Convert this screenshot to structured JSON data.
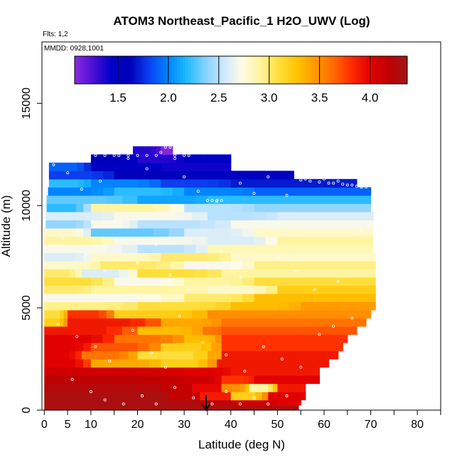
{
  "chart_data": {
    "type": "heatmap",
    "title": "ATOM3 Northeast_Pacific_1 H2O_UWV (Log)",
    "flights_label": "Flts: 1,2",
    "date_label": "MMDD: 0928,1001",
    "xlabel": "Latitude (deg N)",
    "ylabel": "Altitude (m)",
    "xlim": [
      -0.5,
      85
    ],
    "ylim": [
      0,
      18000
    ],
    "x_ticks": [
      0,
      5,
      10,
      20,
      30,
      40,
      50,
      60,
      70,
      80
    ],
    "x_minor_ticks": [
      15,
      25,
      35,
      45,
      55,
      65,
      75,
      85
    ],
    "y_ticks": [
      0,
      5000,
      10000,
      15000
    ],
    "colorbar": {
      "range": [
        1.07,
        4.37
      ],
      "ticks": [
        1.5,
        2.0,
        2.5,
        3.0,
        3.5,
        4.0
      ],
      "tick_labels": [
        "1.5",
        "2.0",
        "2.5",
        "3.0",
        "3.5",
        "4.0"
      ],
      "colors": [
        "#8a2be2",
        "#4b0fd6",
        "#0000c8",
        "#0000b8",
        "#0a3ff0",
        "#0080ff",
        "#1ab8ff",
        "#7fd0ff",
        "#c8e6ff",
        "#fffbe8",
        "#fff5a0",
        "#ffe040",
        "#ffc400",
        "#ff9a00",
        "#ff6a00",
        "#ff2a00",
        "#e00000",
        "#c00000",
        "#a01818"
      ]
    },
    "marker_lat": 34.7,
    "profile_envelope": [
      {
        "alt": 0,
        "lat_min": 0,
        "lat_max": 54.5
      },
      {
        "alt": 500,
        "lat_min": 0,
        "lat_max": 56
      },
      {
        "alt": 1500,
        "lat_min": 0,
        "lat_max": 59
      },
      {
        "alt": 2500,
        "lat_min": 0,
        "lat_max": 61
      },
      {
        "alt": 3500,
        "lat_min": 0,
        "lat_max": 65
      },
      {
        "alt": 4500,
        "lat_min": 0,
        "lat_max": 69
      },
      {
        "alt": 5200,
        "lat_min": 0,
        "lat_max": 71
      },
      {
        "alt": 6000,
        "lat_min": 0,
        "lat_max": 71
      },
      {
        "alt": 7000,
        "lat_min": 0,
        "lat_max": 71
      },
      {
        "alt": 8000,
        "lat_min": 0,
        "lat_max": 70.5
      },
      {
        "alt": 9000,
        "lat_min": 0.3,
        "lat_max": 70.5
      },
      {
        "alt": 10000,
        "lat_min": 0.5,
        "lat_max": 70
      },
      {
        "alt": 11000,
        "lat_min": 0.8,
        "lat_max": 70
      },
      {
        "alt": 11500,
        "lat_min": 1,
        "lat_max": 67
      },
      {
        "alt": 12000,
        "lat_min": 1,
        "lat_max": 53.5
      },
      {
        "alt": 12400,
        "lat_min": 10,
        "lat_max": 40
      },
      {
        "alt": 12800,
        "lat_min": 19,
        "lat_max": 27.5
      },
      {
        "alt": 13000,
        "lat_min": 19,
        "lat_max": 27.5
      }
    ],
    "layers": [
      {
        "alt": [
          0,
          250
        ],
        "segments": [
          [
            0,
            54.5,
            4.3
          ]
        ]
      },
      {
        "alt": [
          250,
          500
        ],
        "segments": [
          [
            0,
            40,
            4.3
          ],
          [
            40,
            50,
            4.1
          ],
          [
            50,
            55,
            4.0
          ]
        ]
      },
      {
        "alt": [
          500,
          900
        ],
        "segments": [
          [
            0,
            40,
            4.3
          ],
          [
            40,
            48,
            3.2
          ],
          [
            48,
            56,
            4.0
          ]
        ]
      },
      {
        "alt": [
          900,
          1300
        ],
        "segments": [
          [
            0,
            38,
            4.25
          ],
          [
            38,
            44,
            3.5
          ],
          [
            44,
            50,
            2.9
          ],
          [
            50,
            56,
            3.9
          ]
        ]
      },
      {
        "alt": [
          1300,
          1700
        ],
        "segments": [
          [
            0,
            30,
            4.2
          ],
          [
            30,
            38,
            4.1
          ],
          [
            38,
            45,
            3.8
          ],
          [
            45,
            59,
            4.0
          ]
        ]
      },
      {
        "alt": [
          1700,
          2100
        ],
        "segments": [
          [
            0,
            30,
            4.1
          ],
          [
            30,
            40,
            4.0
          ],
          [
            40,
            59,
            3.9
          ]
        ]
      },
      {
        "alt": [
          2100,
          2500
        ],
        "segments": [
          [
            0,
            10,
            4.0
          ],
          [
            10,
            25,
            3.4
          ],
          [
            25,
            37,
            3.2
          ],
          [
            37,
            61,
            3.9
          ]
        ]
      },
      {
        "alt": [
          2500,
          2900
        ],
        "segments": [
          [
            0,
            8,
            4.0
          ],
          [
            8,
            20,
            3.6
          ],
          [
            20,
            38,
            3.1
          ],
          [
            38,
            63,
            3.9
          ]
        ]
      },
      {
        "alt": [
          2900,
          3300
        ],
        "segments": [
          [
            0,
            10,
            4.0
          ],
          [
            10,
            25,
            3.7
          ],
          [
            25,
            38,
            3.2
          ],
          [
            38,
            64,
            3.8
          ]
        ]
      },
      {
        "alt": [
          3300,
          3700
        ],
        "segments": [
          [
            0,
            15,
            4.0
          ],
          [
            15,
            30,
            3.6
          ],
          [
            30,
            38,
            3.3
          ],
          [
            38,
            65,
            3.8
          ]
        ]
      },
      {
        "alt": [
          3700,
          4100
        ],
        "segments": [
          [
            0,
            20,
            3.9
          ],
          [
            20,
            34,
            3.3
          ],
          [
            34,
            38,
            3.6
          ],
          [
            38,
            67,
            3.7
          ]
        ]
      },
      {
        "alt": [
          4100,
          4500
        ],
        "segments": [
          [
            0,
            5,
            3.2
          ],
          [
            5,
            25,
            3.9
          ],
          [
            25,
            38,
            3.4
          ],
          [
            38,
            69,
            3.6
          ]
        ]
      },
      {
        "alt": [
          4500,
          4900
        ],
        "segments": [
          [
            0,
            5,
            3.1
          ],
          [
            5,
            15,
            3.8
          ],
          [
            15,
            35,
            3.2
          ],
          [
            35,
            70,
            3.5
          ]
        ]
      },
      {
        "alt": [
          4900,
          5300
        ],
        "segments": [
          [
            0,
            20,
            2.95
          ],
          [
            20,
            40,
            3.1
          ],
          [
            40,
            55,
            3.3
          ],
          [
            55,
            71,
            3.45
          ]
        ]
      },
      {
        "alt": [
          5300,
          5700
        ],
        "segments": [
          [
            0,
            30,
            2.7
          ],
          [
            30,
            45,
            3.0
          ],
          [
            45,
            71,
            3.3
          ]
        ]
      },
      {
        "alt": [
          5700,
          6100
        ],
        "segments": [
          [
            0,
            10,
            3.0
          ],
          [
            10,
            35,
            2.9
          ],
          [
            35,
            50,
            2.8
          ],
          [
            50,
            71,
            3.2
          ]
        ]
      },
      {
        "alt": [
          6100,
          6500
        ],
        "segments": [
          [
            0,
            15,
            3.1
          ],
          [
            15,
            30,
            2.7
          ],
          [
            30,
            45,
            2.9
          ],
          [
            45,
            71,
            3.1
          ]
        ]
      },
      {
        "alt": [
          6500,
          6900
        ],
        "segments": [
          [
            0,
            8,
            3.0
          ],
          [
            8,
            20,
            2.6
          ],
          [
            20,
            38,
            3.1
          ],
          [
            38,
            71,
            2.9
          ]
        ]
      },
      {
        "alt": [
          6900,
          7300
        ],
        "segments": [
          [
            0,
            12,
            2.8
          ],
          [
            12,
            30,
            3.0
          ],
          [
            30,
            45,
            2.7
          ],
          [
            45,
            71,
            2.95
          ]
        ]
      },
      {
        "alt": [
          7300,
          7700
        ],
        "segments": [
          [
            0,
            10,
            2.6
          ],
          [
            10,
            25,
            2.8
          ],
          [
            25,
            40,
            3.0
          ],
          [
            40,
            71,
            2.8
          ]
        ]
      },
      {
        "alt": [
          7700,
          8100
        ],
        "segments": [
          [
            0,
            20,
            2.7
          ],
          [
            20,
            35,
            2.5
          ],
          [
            35,
            70.5,
            2.85
          ]
        ]
      },
      {
        "alt": [
          8100,
          8500
        ],
        "segments": [
          [
            0,
            15,
            2.9
          ],
          [
            15,
            35,
            2.7
          ],
          [
            35,
            50,
            2.6
          ],
          [
            50,
            70.5,
            2.9
          ]
        ]
      },
      {
        "alt": [
          8500,
          8900
        ],
        "segments": [
          [
            0,
            10,
            2.8
          ],
          [
            10,
            30,
            2.3
          ],
          [
            30,
            45,
            2.6
          ],
          [
            45,
            70.5,
            2.8
          ]
        ]
      },
      {
        "alt": [
          8900,
          9300
        ],
        "segments": [
          [
            0.3,
            10,
            2.4
          ],
          [
            10,
            20,
            2.7
          ],
          [
            20,
            40,
            2.5
          ],
          [
            40,
            70.5,
            2.7
          ]
        ]
      },
      {
        "alt": [
          9300,
          9700
        ],
        "segments": [
          [
            0.3,
            15,
            2.6
          ],
          [
            15,
            35,
            2.7
          ],
          [
            35,
            50,
            2.5
          ],
          [
            50,
            70.5,
            2.6
          ]
        ]
      },
      {
        "alt": [
          9700,
          10100
        ],
        "segments": [
          [
            0.5,
            10,
            2.2
          ],
          [
            10,
            30,
            2.9
          ],
          [
            30,
            45,
            2.5
          ],
          [
            45,
            70,
            2.4
          ]
        ]
      },
      {
        "alt": [
          10100,
          10500
        ],
        "segments": [
          [
            0.5,
            20,
            2.3
          ],
          [
            20,
            35,
            2.1
          ],
          [
            35,
            70,
            2.2
          ]
        ]
      },
      {
        "alt": [
          10500,
          10900
        ],
        "segments": [
          [
            0.8,
            15,
            2.0
          ],
          [
            15,
            30,
            2.2
          ],
          [
            30,
            45,
            2.0
          ],
          [
            45,
            70,
            1.9
          ]
        ]
      },
      {
        "alt": [
          10900,
          11300
        ],
        "segments": [
          [
            1,
            10,
            2.2
          ],
          [
            10,
            25,
            2.0
          ],
          [
            25,
            40,
            1.8
          ],
          [
            40,
            67,
            1.7
          ]
        ]
      },
      {
        "alt": [
          11300,
          11700
        ],
        "segments": [
          [
            1,
            15,
            1.8
          ],
          [
            15,
            30,
            1.6
          ],
          [
            30,
            53.5,
            1.5
          ]
        ]
      },
      {
        "alt": [
          11700,
          12100
        ],
        "segments": [
          [
            1,
            10,
            1.9
          ],
          [
            10,
            25,
            1.5
          ],
          [
            25,
            40,
            1.4
          ]
        ]
      },
      {
        "alt": [
          12100,
          12500
        ],
        "segments": [
          [
            10,
            20,
            1.6
          ],
          [
            20,
            30,
            1.35
          ],
          [
            30,
            40,
            1.5
          ]
        ]
      },
      {
        "alt": [
          12500,
          12900
        ],
        "segments": [
          [
            19,
            25,
            1.35
          ],
          [
            25,
            27.5,
            1.1
          ]
        ]
      }
    ],
    "samples": [
      [
        2,
        12000
      ],
      [
        5,
        11600
      ],
      [
        8,
        10800
      ],
      [
        12,
        11200
      ],
      [
        15,
        9200
      ],
      [
        18,
        12300
      ],
      [
        22,
        11800
      ],
      [
        25,
        12600
      ],
      [
        28,
        12300
      ],
      [
        30,
        11400
      ],
      [
        33,
        10700
      ],
      [
        37,
        10200
      ],
      [
        42,
        11100
      ],
      [
        45,
        10600
      ],
      [
        48,
        11400
      ],
      [
        52,
        10500
      ],
      [
        56,
        11300
      ],
      [
        60,
        11300
      ],
      [
        63,
        11200
      ],
      [
        66,
        11000
      ],
      [
        68,
        10900
      ],
      [
        4,
        8400
      ],
      [
        9,
        7600
      ],
      [
        13,
        6800
      ],
      [
        17,
        6200
      ],
      [
        20,
        7200
      ],
      [
        24,
        8100
      ],
      [
        27,
        6600
      ],
      [
        31,
        5800
      ],
      [
        35,
        7000
      ],
      [
        38,
        7800
      ],
      [
        42,
        6500
      ],
      [
        46,
        8700
      ],
      [
        50,
        7400
      ],
      [
        54,
        6800
      ],
      [
        58,
        5900
      ],
      [
        63,
        6300
      ],
      [
        68,
        8800
      ],
      [
        3,
        4200
      ],
      [
        7,
        3600
      ],
      [
        11,
        3100
      ],
      [
        14,
        2400
      ],
      [
        19,
        3900
      ],
      [
        23,
        2800
      ],
      [
        26,
        2100
      ],
      [
        29,
        4600
      ],
      [
        34,
        3300
      ],
      [
        39,
        2700
      ],
      [
        43,
        1900
      ],
      [
        47,
        3100
      ],
      [
        51,
        2500
      ],
      [
        55,
        2100
      ],
      [
        59,
        3700
      ],
      [
        62,
        4100
      ],
      [
        66,
        4500
      ],
      [
        6,
        1500
      ],
      [
        10,
        900
      ],
      [
        13,
        500
      ],
      [
        17,
        300
      ],
      [
        21,
        700
      ],
      [
        24,
        300
      ],
      [
        28,
        1100
      ],
      [
        32,
        600
      ],
      [
        36,
        300
      ],
      [
        39,
        900
      ],
      [
        42,
        300
      ],
      [
        45,
        600
      ],
      [
        48,
        300
      ],
      [
        52,
        700
      ],
      [
        11,
        12450
      ],
      [
        13,
        12450
      ],
      [
        15,
        12450
      ],
      [
        16,
        12450
      ],
      [
        18,
        12450
      ],
      [
        20,
        12450
      ],
      [
        22,
        12450
      ],
      [
        24,
        12450
      ],
      [
        26,
        12850
      ],
      [
        27,
        12850
      ],
      [
        28,
        12450
      ],
      [
        30,
        12450
      ],
      [
        31,
        12450
      ],
      [
        55,
        11250
      ],
      [
        57,
        11200
      ],
      [
        59,
        11150
      ],
      [
        61,
        11100
      ],
      [
        62,
        11100
      ],
      [
        64,
        11050
      ],
      [
        65,
        11000
      ],
      [
        67,
        10950
      ],
      [
        68,
        10900
      ],
      [
        69,
        10900
      ],
      [
        35,
        10250
      ],
      [
        36,
        10250
      ],
      [
        37,
        10250
      ],
      [
        38,
        10250
      ]
    ]
  }
}
